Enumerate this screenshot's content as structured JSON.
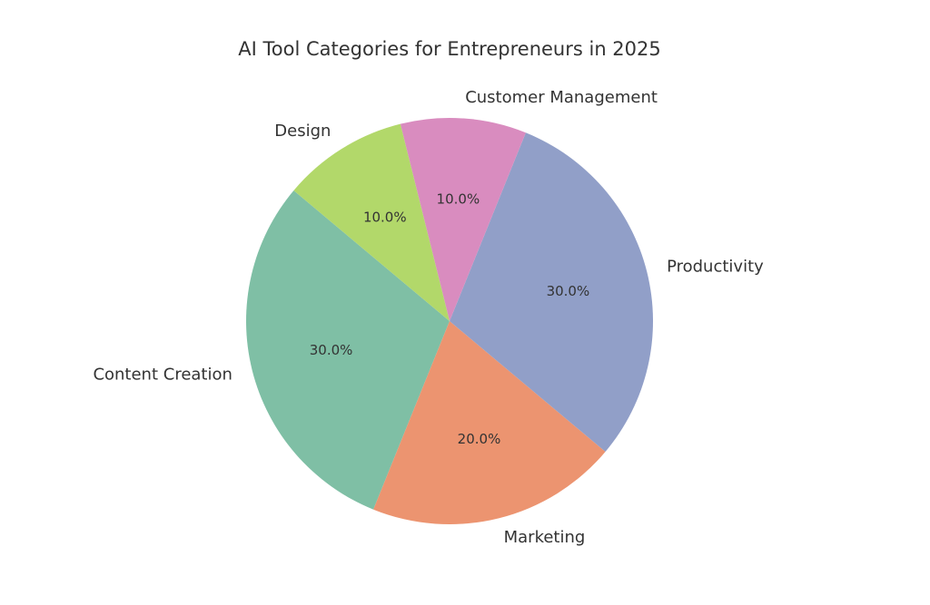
{
  "chart_data": {
    "type": "pie",
    "title": "AI Tool Categories for Entrepreneurs in 2025",
    "categories": [
      "Content Creation",
      "Marketing",
      "Productivity",
      "Customer Management",
      "Design"
    ],
    "values": [
      30,
      20,
      30,
      10,
      10
    ],
    "value_labels": [
      "30.0%",
      "20.0%",
      "30.0%",
      "10.0%",
      "10.0%"
    ],
    "colors": [
      "#7fbfa5",
      "#ec9470",
      "#919fc8",
      "#d98cbf",
      "#b2d86a"
    ]
  }
}
